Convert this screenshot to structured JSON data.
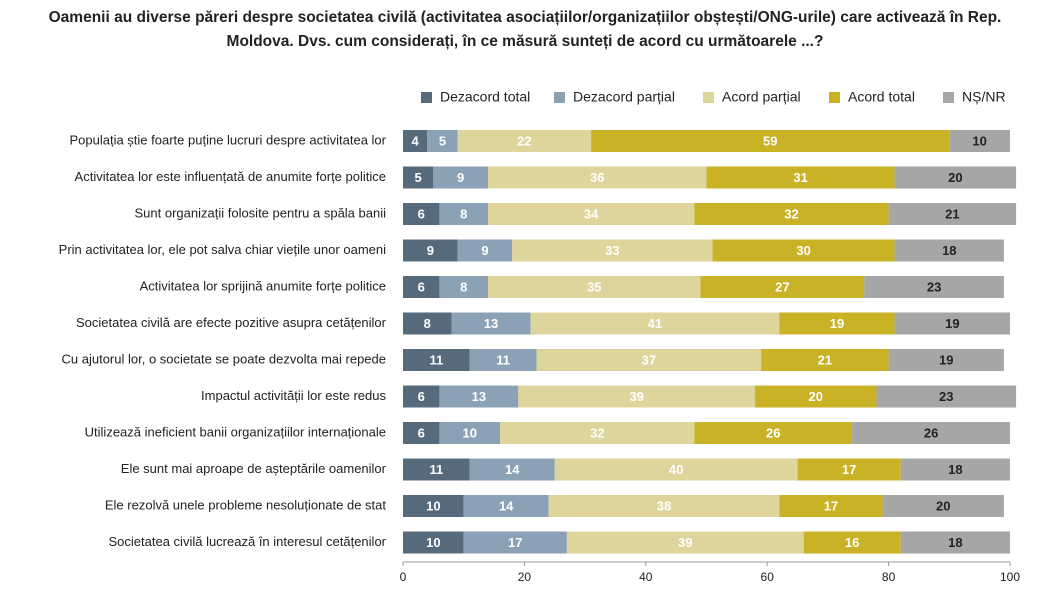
{
  "chart_data": {
    "type": "stacked-barh",
    "title": "Oamenii au diverse păreri despre societatea civilă (activitatea asociațiilor/organizațiilor obștești/ONG-urile) care activează în Rep. Moldova. Dvs. cum considerați, în ce măsură sunteți de acord cu următoarele ...?",
    "categories": [
      "Populația știe foarte puține lucruri despre activitatea lor",
      "Activitatea lor este influențată de anumite forțe politice",
      "Sunt organizații folosite pentru a spăla banii",
      "Prin activitatea lor, ele pot salva chiar viețile unor oameni",
      "Activitatea lor sprijină anumite forțe politice",
      "Societatea civilă are efecte pozitive asupra cetățenilor",
      "Cu ajutorul lor, o societate se poate dezvolta mai repede",
      "Impactul activității lor este redus",
      "Utilizează ineficient banii organizațiilor internaționale",
      "Ele sunt mai aproape de așteptările oamenilor",
      "Ele rezolvă unele probleme nesoluționate de stat",
      "Societatea civilă lucrează în interesul cetățenilor"
    ],
    "series": [
      {
        "name": "Dezacord total",
        "color": "#576a7c",
        "label_color": "#ffffff",
        "values": [
          4,
          5,
          6,
          9,
          6,
          8,
          11,
          6,
          6,
          11,
          10,
          10
        ]
      },
      {
        "name": "Dezacord parțial",
        "color": "#8ba2b6",
        "label_color": "#ffffff",
        "values": [
          5,
          9,
          8,
          9,
          8,
          13,
          11,
          13,
          10,
          14,
          14,
          17
        ]
      },
      {
        "name": "Acord parțial",
        "color": "#ddd59b",
        "label_color": "#ffffff",
        "values": [
          22,
          36,
          34,
          33,
          35,
          41,
          37,
          39,
          32,
          40,
          38,
          39
        ]
      },
      {
        "name": "Acord total",
        "color": "#c9b226",
        "label_color": "#ffffff",
        "values": [
          59,
          31,
          32,
          30,
          27,
          19,
          21,
          20,
          26,
          17,
          17,
          16
        ]
      },
      {
        "name": "NȘ/NR",
        "color": "#a6a6a6",
        "label_color": "#222222",
        "values": [
          10,
          20,
          21,
          18,
          23,
          19,
          19,
          23,
          26,
          18,
          20,
          18
        ]
      }
    ],
    "xlim": [
      0,
      100
    ],
    "xticks": [
      0,
      20,
      40,
      60,
      80,
      100
    ],
    "legend": "top-right"
  }
}
